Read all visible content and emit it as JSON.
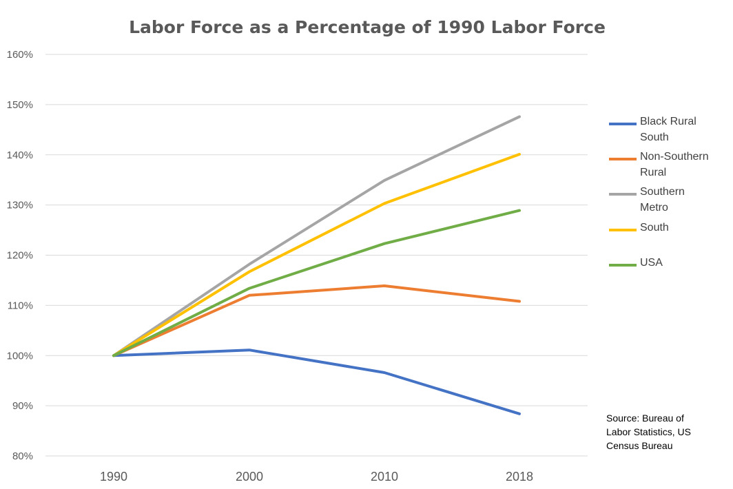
{
  "chart_data": {
    "type": "line",
    "title": "Labor Force as a Percentage of 1990 Labor Force",
    "xlabel": "",
    "ylabel": "",
    "categories": [
      "1990",
      "2000",
      "2010",
      "2018"
    ],
    "ylim": [
      0.8,
      1.6
    ],
    "y_ticks": [
      {
        "value": 0.8,
        "label": "80%"
      },
      {
        "value": 0.9,
        "label": "90%"
      },
      {
        "value": 1.0,
        "label": "100%"
      },
      {
        "value": 1.1,
        "label": "110%"
      },
      {
        "value": 1.2,
        "label": "120%"
      },
      {
        "value": 1.3,
        "label": "130%"
      },
      {
        "value": 1.4,
        "label": "140%"
      },
      {
        "value": 1.5,
        "label": "150%"
      },
      {
        "value": 1.6,
        "label": "160%"
      }
    ],
    "grid": true,
    "legend_position": "right",
    "series": [
      {
        "name": "Black Rural South",
        "legend_lines": [
          "Black Rural",
          "South"
        ],
        "color": "#4472c4",
        "values": [
          1.0,
          1.011,
          0.966,
          0.884
        ]
      },
      {
        "name": "Non-Southern Rural",
        "legend_lines": [
          "Non-Southern",
          "Rural"
        ],
        "color": "#ed7d31",
        "values": [
          1.0,
          1.12,
          1.139,
          1.108
        ]
      },
      {
        "name": "Southern Metro",
        "legend_lines": [
          "Southern",
          "Metro"
        ],
        "color": "#a5a5a5",
        "values": [
          1.0,
          1.182,
          1.349,
          1.476
        ]
      },
      {
        "name": "South",
        "legend_lines": [
          "South"
        ],
        "color": "#ffc000",
        "values": [
          1.0,
          1.167,
          1.303,
          1.401
        ]
      },
      {
        "name": "USA",
        "legend_lines": [
          "USA"
        ],
        "color": "#70ad47",
        "values": [
          1.0,
          1.134,
          1.223,
          1.289
        ]
      }
    ],
    "annotation": {
      "lines": [
        "Source: Bureau of",
        "Labor Statistics, US",
        "Census Bureau"
      ]
    }
  }
}
